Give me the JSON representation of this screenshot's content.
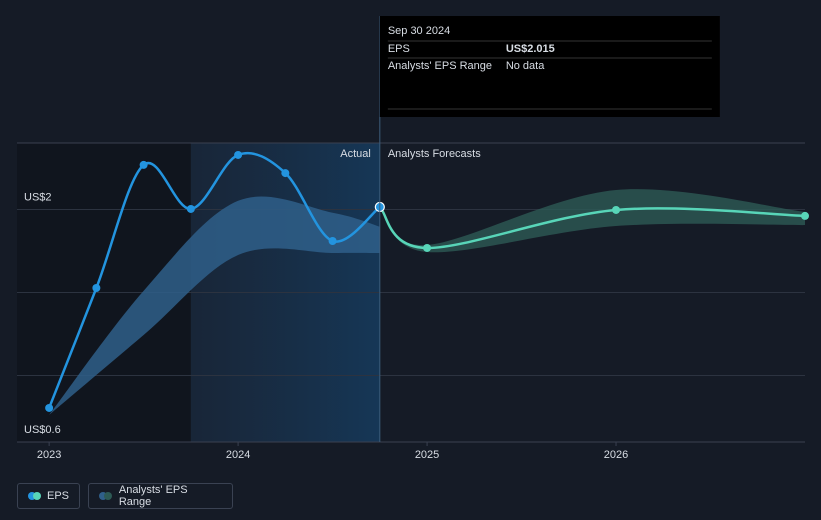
{
  "chart_data": {
    "type": "line",
    "xlim": [
      2022.83,
      2027
    ],
    "xticks": [
      2023,
      2024,
      2025,
      2026
    ],
    "ylim": [
      0.6,
      2.4
    ],
    "yticks": [
      {
        "value": 0.6,
        "label": "US$0.6"
      },
      {
        "value": 2,
        "label": "US$2"
      }
    ],
    "minor_yticks": [
      1,
      1.5
    ],
    "grid": true,
    "highlight_start": 2023.75,
    "series": [
      {
        "name": "EPS",
        "color": "#2394df",
        "x": [
          2023,
          2023.25,
          2023.5,
          2023.75,
          2024,
          2024.25,
          2024.5,
          2024.75
        ],
        "values": [
          0.805,
          1.527,
          2.268,
          2.003,
          2.328,
          2.219,
          1.81,
          2.015
        ]
      }
    ],
    "forecast": {
      "color": "#58d5b8",
      "x": [
        2024.75,
        2025,
        2026,
        2027
      ],
      "values": [
        2.015,
        1.768,
        1.997,
        1.961
      ]
    },
    "range": {
      "name": "Analysts' EPS Range",
      "color": "#2f5f8a",
      "x": [
        2023,
        2023.5,
        2024,
        2024.5,
        2024.75
      ],
      "low": [
        0.763,
        1.244,
        1.726,
        1.738,
        1.738
      ],
      "high": [
        0.763,
        1.51,
        2.052,
        1.98,
        1.896
      ]
    },
    "forecast_range": {
      "color": "#2d5a55",
      "x": [
        2024.75,
        2025,
        2026,
        2027
      ],
      "low": [
        2.015,
        1.744,
        1.9,
        1.906
      ],
      "high": [
        2.015,
        1.786,
        2.117,
        1.985
      ]
    },
    "annotations": {
      "actual": "Actual",
      "forecast": "Analysts Forecasts"
    },
    "tooltip": {
      "date": "Sep 30 2024",
      "rows": [
        [
          "EPS",
          "US$2.015"
        ],
        [
          "Analysts' EPS Range",
          "No data"
        ]
      ]
    }
  }
}
